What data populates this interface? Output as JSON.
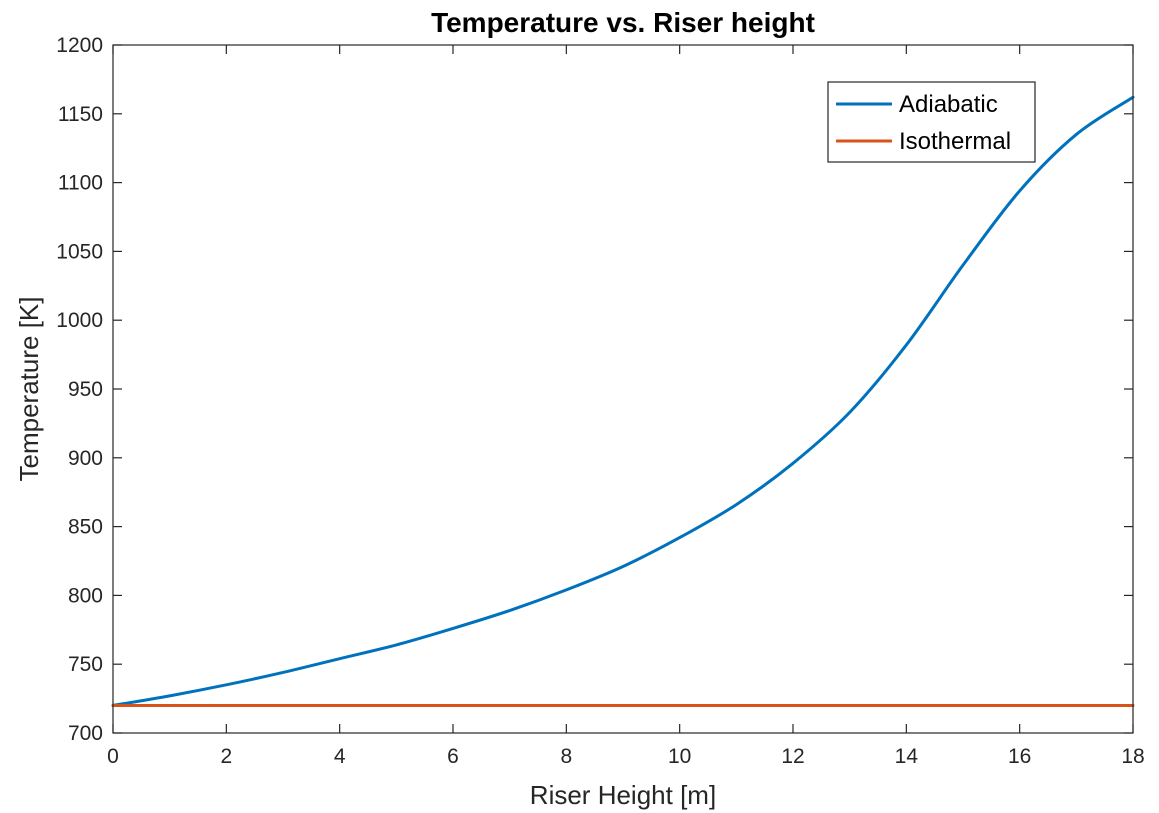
{
  "chart_data": {
    "type": "line",
    "title": "Temperature vs. Riser height",
    "xlabel": "Riser Height [m]",
    "ylabel": "Temperature [K]",
    "xlim": [
      0,
      18
    ],
    "ylim": [
      700,
      1200
    ],
    "xticks": [
      "0",
      "2",
      "4",
      "6",
      "8",
      "10",
      "12",
      "14",
      "16",
      "18"
    ],
    "yticks": [
      "700",
      "750",
      "800",
      "850",
      "900",
      "950",
      "1000",
      "1050",
      "1100",
      "1150",
      "1200"
    ],
    "grid": false,
    "legend_position": "top-right",
    "series": [
      {
        "name": "Adiabatic",
        "color": "#0072BD",
        "x": [
          0,
          1,
          2,
          3,
          4,
          5,
          6,
          7,
          8,
          9,
          10,
          11,
          12,
          13,
          14,
          15,
          16,
          17,
          18
        ],
        "y": [
          720,
          727,
          735,
          744,
          754,
          764,
          776,
          789,
          804,
          821,
          842,
          866,
          896,
          933,
          982,
          1040,
          1094,
          1135,
          1162
        ]
      },
      {
        "name": "Isothermal",
        "color": "#D95319",
        "x": [
          0,
          18
        ],
        "y": [
          720,
          720
        ]
      }
    ]
  }
}
